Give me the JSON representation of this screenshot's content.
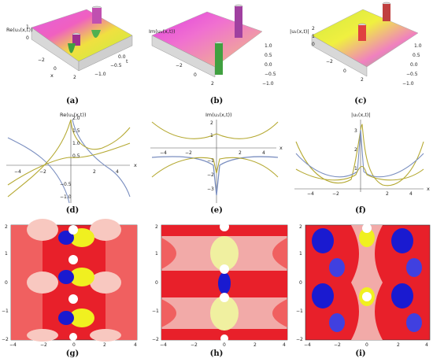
{
  "captions": [
    "(a)",
    "(b)",
    "(c)",
    "(d)",
    "(e)",
    "(f)",
    "(g)",
    "(h)",
    "(i)"
  ],
  "row1": {
    "a": {
      "zlabel": "Re(u₁(x,t))",
      "ticks_x": [
        "−2",
        "0",
        "2"
      ],
      "ticks_t": [
        "1.0",
        "0.5",
        "0.0",
        "−0.5",
        "−1.0"
      ],
      "tlabel": "t",
      "xlabel": "x",
      "zticks": [
        "1",
        "0"
      ]
    },
    "b": {
      "zlabel": "Im(u₁(x,t))",
      "ticks_x": [
        "−2",
        "0",
        "2"
      ],
      "ticks_t": [
        "1.0",
        "0.5",
        "0.0",
        "−0.5",
        "−1.0"
      ],
      "tlabel": "t",
      "xlabel": "x",
      "zticks": [
        "1",
        "0",
        "−1"
      ]
    },
    "c": {
      "zlabel": "|u₁(x,t)|",
      "ticks_x": [
        "−2",
        "0",
        "2"
      ],
      "ticks_t": [
        "1.0",
        "0.5",
        "0.0",
        "−0.5",
        "−1.0"
      ],
      "tlabel": "t",
      "xlabel": "x",
      "zticks": [
        "2",
        "1",
        "0"
      ]
    }
  },
  "row2": {
    "d": {
      "title": "Re(u₁(x,t))",
      "xlabel": "x",
      "xticks": [
        "−4",
        "−2",
        "2",
        "4"
      ],
      "yticks": [
        "2.0",
        "1.5",
        "1.0",
        "0.5",
        "−0.5",
        "−1.0"
      ]
    },
    "e": {
      "title": "Im(u₁(x,t))",
      "xlabel": "x",
      "xticks": [
        "−4",
        "−2",
        "2",
        "4"
      ],
      "yticks": [
        "2",
        "1",
        "−1",
        "−2",
        "−3"
      ]
    },
    "f": {
      "title": "|u₁(x,t)|",
      "xlabel": "x",
      "xticks": [
        "−4",
        "−2",
        "2",
        "4"
      ],
      "yticks": [
        "3",
        "2",
        "1"
      ]
    }
  },
  "row3": {
    "xticks": [
      "−4",
      "−2",
      "0",
      "2",
      "4"
    ],
    "yticks": [
      "2",
      "1",
      "0",
      "−1",
      "−2"
    ]
  },
  "colors": {
    "blue_curve": "#7b8fc0",
    "olive_curve": "#b5a932",
    "contour_red": "#e8202a",
    "contour_pink": "#f2aaa8",
    "contour_blue": "#1a1ad0",
    "contour_yellow": "#f0f020"
  }
}
